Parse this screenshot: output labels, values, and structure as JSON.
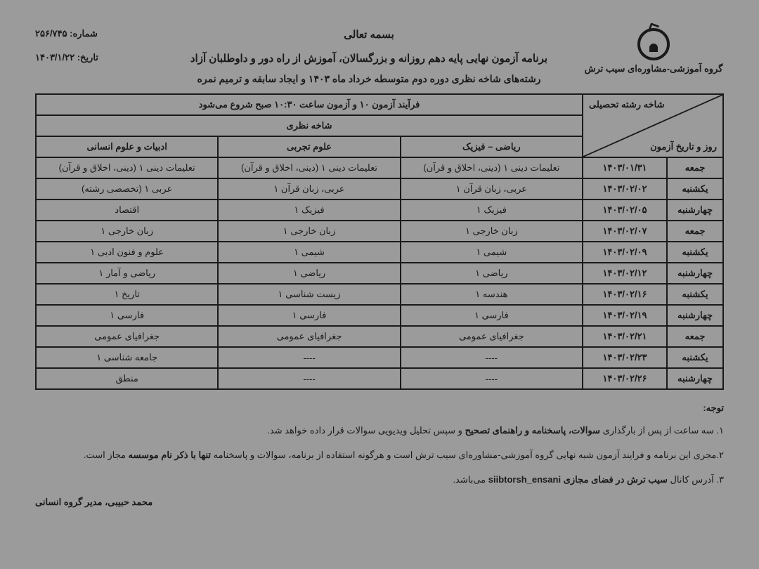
{
  "header": {
    "logo_text": "گروه آموزشی-مشاوره‌ای سیب ترش",
    "bismillah": "بسمه تعالی",
    "main_title": "برنامه آزمون نهایی پایه دهم روزانه و بزرگسالان، آموزش از راه دور و داوطلبان آزاد",
    "sub_title": "رشته‌های شاخه نظری دوره دوم متوسطه خرداد ماه ۱۴۰۳ و ایجاد سابقه و ترمیم نمره",
    "number_label": "شماره: ",
    "number_value": "۲۵۶/۷۴۵",
    "date_label": "تاریخ: ",
    "date_value": "۱۴۰۳/۱/۲۲"
  },
  "table": {
    "diag_top": "شاخه رشته تحصیلی",
    "diag_bottom": "روز و تاریخ آزمون",
    "process_header": "فرآیند آزمون ۱۰ و آزمون ساعت ۱۰:۳۰ صبح شروع می‌شود",
    "branch_header": "شاخه نظری",
    "columns": [
      "ریاضی – فیزیک",
      "علوم تجربی",
      "ادبیات و علوم انسانی"
    ],
    "rows": [
      {
        "day": "جمعه",
        "date": "۱۴۰۳/۰۱/۳۱",
        "c1": "تعلیمات دینی ۱ (دینی، اخلاق و قرآن)",
        "c2": "تعلیمات دینی ۱ (دینی، اخلاق و قرآن)",
        "c3": "تعلیمات دینی ۱ (دینی، اخلاق و قرآن)"
      },
      {
        "day": "یکشنبه",
        "date": "۱۴۰۳/۰۲/۰۲",
        "c1": "عربی، زبان قرآن ۱",
        "c2": "عربی، زبان قرآن ۱",
        "c3": "عربی ۱ (تخصصی رشته)"
      },
      {
        "day": "چهارشنبه",
        "date": "۱۴۰۳/۰۲/۰۵",
        "c1": "فیزیک ۱",
        "c2": "فیزیک ۱",
        "c3": "اقتصاد"
      },
      {
        "day": "جمعه",
        "date": "۱۴۰۳/۰۲/۰۷",
        "c1": "زبان خارجی ۱",
        "c2": "زبان خارجی ۱",
        "c3": "زبان خارجی ۱"
      },
      {
        "day": "یکشنبه",
        "date": "۱۴۰۳/۰۲/۰۹",
        "c1": "شیمی ۱",
        "c2": "شیمی ۱",
        "c3": "علوم و فنون ادبی ۱"
      },
      {
        "day": "چهارشنبه",
        "date": "۱۴۰۳/۰۲/۱۲",
        "c1": "ریاضی ۱",
        "c2": "ریاضی ۱",
        "c3": "ریاضی و آمار ۱"
      },
      {
        "day": "یکشنبه",
        "date": "۱۴۰۳/۰۲/۱۶",
        "c1": "هندسه ۱",
        "c2": "زیست شناسی ۱",
        "c3": "تاریخ ۱"
      },
      {
        "day": "چهارشنبه",
        "date": "۱۴۰۳/۰۲/۱۹",
        "c1": "فارسی ۱",
        "c2": "فارسی ۱",
        "c3": "فارسی ۱"
      },
      {
        "day": "جمعه",
        "date": "۱۴۰۳/۰۲/۲۱",
        "c1": "جغرافیای عمومی",
        "c2": "جغرافیای عمومی",
        "c3": "جغرافیای عمومی"
      },
      {
        "day": "یکشنبه",
        "date": "۱۴۰۳/۰۲/۲۳",
        "c1": "----",
        "c2": "----",
        "c3": "جامعه شناسی ۱"
      },
      {
        "day": "چهارشنبه",
        "date": "۱۴۰۳/۰۲/۲۶",
        "c1": "----",
        "c2": "----",
        "c3": "منطق"
      }
    ]
  },
  "notes": {
    "title": "توجه:",
    "n1_a": "۱. سه ساعت از پس از بارگذاری ",
    "n1_b": "سوالات، پاسخنامه و راهنمای تصحیح",
    "n1_c": " و سپس تحلیل ویدیویی سوالات قرار داده خواهد شد.",
    "n2_a": "۲.مجری این برنامه و فرایند آزمون شبه نهایی گروه آموزشی-مشاوره‌ای سیب ترش است و هرگونه استفاده از برنامه، سوالات و پاسخنامه ",
    "n2_b": "تنها با ذکر نام موسسه",
    "n2_c": " مجاز است.",
    "n3_a": "۳. آدرس کانال ",
    "n3_b": "سیب ترش در فضای مجازی siibtorsh_ensani",
    "n3_c": " می‌باشد.",
    "signature": "محمد حبیبی، مدیر گروه انسانی"
  },
  "style": {
    "background_color": "#9b9b9b",
    "border_color": "#1a1a1a",
    "text_color": "#1a1a1a",
    "font_family": "Tahoma",
    "base_fontsize": 13,
    "title_fontsize": 15
  }
}
